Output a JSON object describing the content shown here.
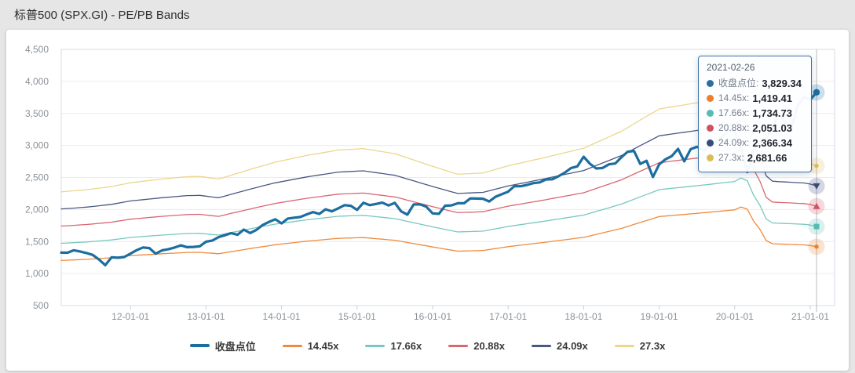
{
  "page": {
    "title": "标普500 (SPX.GI) - PE/PB Bands"
  },
  "tooltip": {
    "date": "2021-02-26",
    "rows": [
      {
        "label": "收盘点位",
        "value": "3,829.34",
        "color": "#2a6f9e"
      },
      {
        "label": "14.45x",
        "value": "1,419.41",
        "color": "#ee7f28"
      },
      {
        "label": "17.66x",
        "value": "1,734.73",
        "color": "#55bcb1"
      },
      {
        "label": "20.88x",
        "value": "2,051.03",
        "color": "#d4505e"
      },
      {
        "label": "24.09x",
        "value": "2,366.34",
        "color": "#3a4b7b"
      },
      {
        "label": "27.3x",
        "value": "2,681.66",
        "color": "#ddbb57"
      }
    ]
  },
  "chart_data": {
    "type": "line",
    "title": "标普500 (SPX.GI) - PE/PB Bands",
    "x_start": "2011-02",
    "x_end": "2021-02",
    "x_interval": "monthly",
    "x_tick_labels": [
      "12-01-01",
      "13-01-01",
      "14-01-01",
      "15-01-01",
      "16-01-01",
      "17-01-01",
      "18-01-01",
      "19-01-01",
      "20-01-01",
      "21-01-01"
    ],
    "ylim": [
      500,
      4500
    ],
    "y_tick_labels": [
      "500",
      "1,000",
      "1,500",
      "2,000",
      "2,500",
      "3,000",
      "3,500",
      "4,000",
      "4,500"
    ],
    "grid": true,
    "legend_position": "bottom",
    "crosshair_date": "2021-02-26",
    "series": [
      {
        "name": "收盘点位",
        "slug": "close",
        "color": "#1c6da0",
        "width": 3.2,
        "marker": "circle",
        "values": [
          1327,
          1326,
          1364,
          1345,
          1321,
          1292,
          1219,
          1131,
          1253,
          1247,
          1258,
          1312,
          1366,
          1408,
          1398,
          1310,
          1362,
          1379,
          1407,
          1441,
          1412,
          1416,
          1426,
          1498,
          1515,
          1569,
          1598,
          1631,
          1606,
          1686,
          1633,
          1682,
          1757,
          1806,
          1848,
          1783,
          1859,
          1872,
          1884,
          1924,
          1960,
          1931,
          2003,
          1972,
          2018,
          2068,
          2059,
          1995,
          2105,
          2068,
          2086,
          2107,
          2063,
          2104,
          1972,
          1920,
          2079,
          2080,
          2044,
          1940,
          1932,
          2060,
          2065,
          2097,
          2099,
          2174,
          2171,
          2168,
          2126,
          2199,
          2239,
          2279,
          2364,
          2363,
          2384,
          2412,
          2423,
          2470,
          2472,
          2519,
          2575,
          2648,
          2674,
          2824,
          2714,
          2641,
          2648,
          2705,
          2718,
          2816,
          2902,
          2914,
          2712,
          2760,
          2507,
          2704,
          2784,
          2834,
          2946,
          2752,
          2942,
          2980,
          2926,
          2977,
          3038,
          3141,
          3231,
          3226,
          2954,
          2585,
          2912,
          3044,
          3100,
          3271,
          3500,
          3363,
          3270,
          3622,
          3756,
          3714,
          3829.34
        ]
      },
      {
        "name": "14.45x",
        "slug": "14-45x",
        "color": "#f08a3c",
        "dot": "#ee7f28",
        "width": 1.3,
        "marker": "dot",
        "multiplier": 14.45,
        "values": [
          1205,
          1209,
          1213,
          1218,
          1222,
          1228,
          1235,
          1241,
          1248,
          1259,
          1269,
          1280,
          1286,
          1292,
          1298,
          1304,
          1310,
          1315,
          1320,
          1325,
          1330,
          1331,
          1332,
          1325,
          1317,
          1310,
          1326,
          1342,
          1358,
          1374,
          1390,
          1405,
          1420,
          1435,
          1450,
          1461,
          1472,
          1483,
          1494,
          1505,
          1514,
          1523,
          1532,
          1541,
          1550,
          1553,
          1556,
          1559,
          1562,
          1554,
          1545,
          1537,
          1528,
          1520,
          1503,
          1485,
          1468,
          1450,
          1433,
          1415,
          1399,
          1382,
          1366,
          1350,
          1353,
          1355,
          1358,
          1360,
          1375,
          1390,
          1405,
          1420,
          1432,
          1443,
          1455,
          1467,
          1478,
          1490,
          1503,
          1515,
          1528,
          1540,
          1553,
          1565,
          1588,
          1612,
          1635,
          1658,
          1682,
          1705,
          1736,
          1767,
          1798,
          1828,
          1859,
          1890,
          1898,
          1907,
          1915,
          1923,
          1932,
          1940,
          1949,
          1958,
          1968,
          1977,
          1986,
          1995,
          2040,
          2005,
          1820,
          1690,
          1515,
          1465,
          1461,
          1458,
          1455,
          1451,
          1448,
          1438,
          1419.41
        ]
      },
      {
        "name": "17.66x",
        "slug": "17-66x",
        "color": "#77c8bf",
        "dot": "#55bcb1",
        "width": 1.3,
        "marker": "square",
        "multiplier": 17.66,
        "derived_from": "14.45x"
      },
      {
        "name": "20.88x",
        "slug": "20-88x",
        "color": "#d96671",
        "dot": "#d4505e",
        "width": 1.3,
        "marker": "triangle-up",
        "multiplier": 20.88,
        "derived_from": "14.45x"
      },
      {
        "name": "24.09x",
        "slug": "24-09x",
        "color": "#4a5883",
        "dot": "#3a4b7b",
        "width": 1.3,
        "marker": "triangle-down",
        "multiplier": 24.09,
        "derived_from": "14.45x"
      },
      {
        "name": "27.3x",
        "slug": "27-3x",
        "color": "#ecd68d",
        "dot": "#ddbb57",
        "width": 1.3,
        "marker": "dot",
        "multiplier": 27.3,
        "derived_from": "14.45x"
      }
    ]
  }
}
